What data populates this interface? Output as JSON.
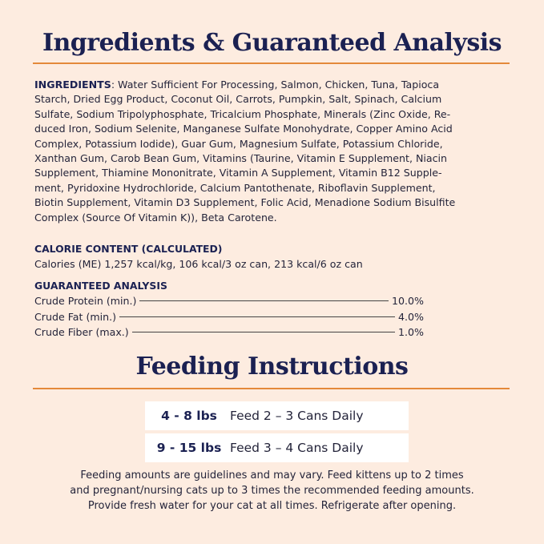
{
  "title": "Ingredients & Guaranteed Analysis",
  "ingredients": {
    "label": "INGREDIENTS",
    "lines": [
      ": Water Sufficient For Processing, Salmon, Chicken, Tuna, Tapioca",
      "Starch, Dried Egg Product, Coconut Oil, Carrots, Pumpkin, Salt, Spinach, Calcium",
      "Sulfate, Sodium Tripolyphosphate, Tricalcium Phosphate, Minerals (Zinc Oxide, Re-",
      "duced Iron, Sodium Selenite, Manganese Sulfate Monohydrate, Copper Amino Acid",
      "Complex, Potassium Iodide), Guar Gum, Magnesium Sulfate, Potassium Chloride,",
      "Xanthan Gum, Carob Bean Gum, Vitamins (Taurine, Vitamin E Supplement, Niacin",
      "Supplement, Thiamine Mononitrate, Vitamin A Supplement, Vitamin B12 Supple-",
      "ment, Pyridoxine Hydrochloride, Calcium Pantothenate, Riboflavin Supplement,",
      "Biotin Supplement, Vitamin D3 Supplement, Folic Acid, Menadione Sodium Bisulfite",
      "Complex (Source Of Vitamin K)), Beta Carotene."
    ]
  },
  "calorie": {
    "heading": "CALORIE CONTENT (CALCULATED)",
    "text": "Calories (ME) 1,257 kcal/kg, 106 kcal/3 oz can, 213 kcal/6 oz can"
  },
  "analysis": {
    "heading": "GUARANTEED ANALYSIS",
    "rows": [
      {
        "name": "Crude Protein (min.)",
        "value": "10.0%"
      },
      {
        "name": "Crude Fat (min.)",
        "value": "4.0%"
      },
      {
        "name": "Crude Fiber (max.)",
        "value": "1.0%"
      }
    ]
  },
  "feeding": {
    "title": "Feeding Instructions",
    "rows": [
      {
        "weight": "4 - 8 lbs",
        "amount": "Feed 2 – 3 Cans Daily"
      },
      {
        "weight": "9 - 15 lbs",
        "amount": "Feed 3 –  4 Cans Daily"
      }
    ],
    "note": [
      "Feeding amounts are guidelines and may vary. Feed kittens up to 2 times",
      "and pregnant/nursing cats up to 3 times the recommended feeding amounts.",
      "Provide fresh water for your cat at all times. Refrigerate after opening."
    ]
  },
  "colors": {
    "background": "#fdece0",
    "navy": "#1b2152",
    "accent": "#e4893a"
  }
}
